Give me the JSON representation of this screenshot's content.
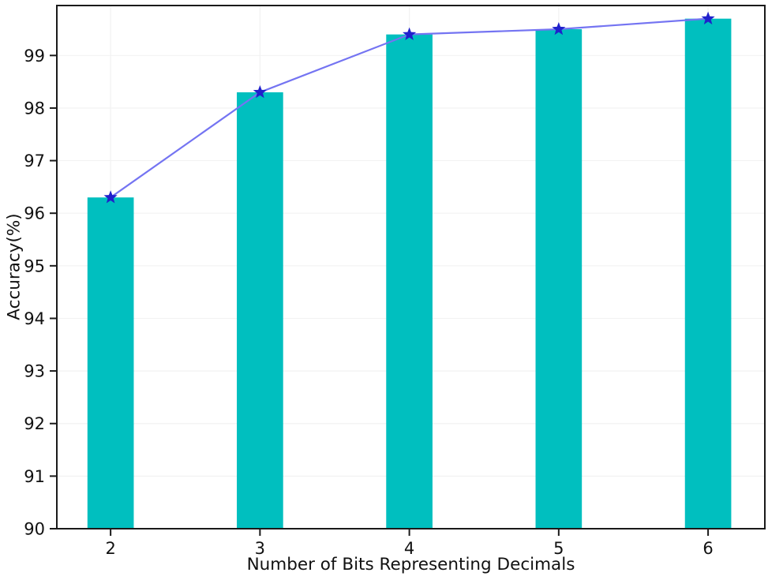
{
  "figure": {
    "background": "#ffffff"
  },
  "chart_data": {
    "type": "bar",
    "title": "",
    "xlabel": "Number of Bits Representing Decimals",
    "ylabel": "Accuracy(%)",
    "categories": [
      2,
      3,
      4,
      5,
      6
    ],
    "values": [
      96.3,
      98.3,
      99.4,
      99.5,
      99.7
    ],
    "series": [
      {
        "name": "accuracy-bars",
        "type": "bar",
        "values": [
          96.3,
          98.3,
          99.4,
          99.5,
          99.7
        ],
        "color": "#00bfbf"
      },
      {
        "name": "accuracy-line",
        "type": "line",
        "marker": "star",
        "values": [
          96.3,
          98.3,
          99.4,
          99.5,
          99.7
        ],
        "color": "#7474f2",
        "marker_color": "#2020cc"
      }
    ],
    "xticks": [
      2,
      3,
      4,
      5,
      6
    ],
    "yticks": [
      90,
      91,
      92,
      93,
      94,
      95,
      96,
      97,
      98,
      99
    ],
    "xlim": [
      1.64,
      6.38
    ],
    "ylim": [
      90,
      99.95
    ],
    "bar_width": 0.31,
    "grid": true,
    "grid_color": "#f2f2f2",
    "spine_color": "#1a1a1a",
    "tick_color": "#1a1a1a",
    "text_color": "#111111",
    "legend": "none"
  }
}
